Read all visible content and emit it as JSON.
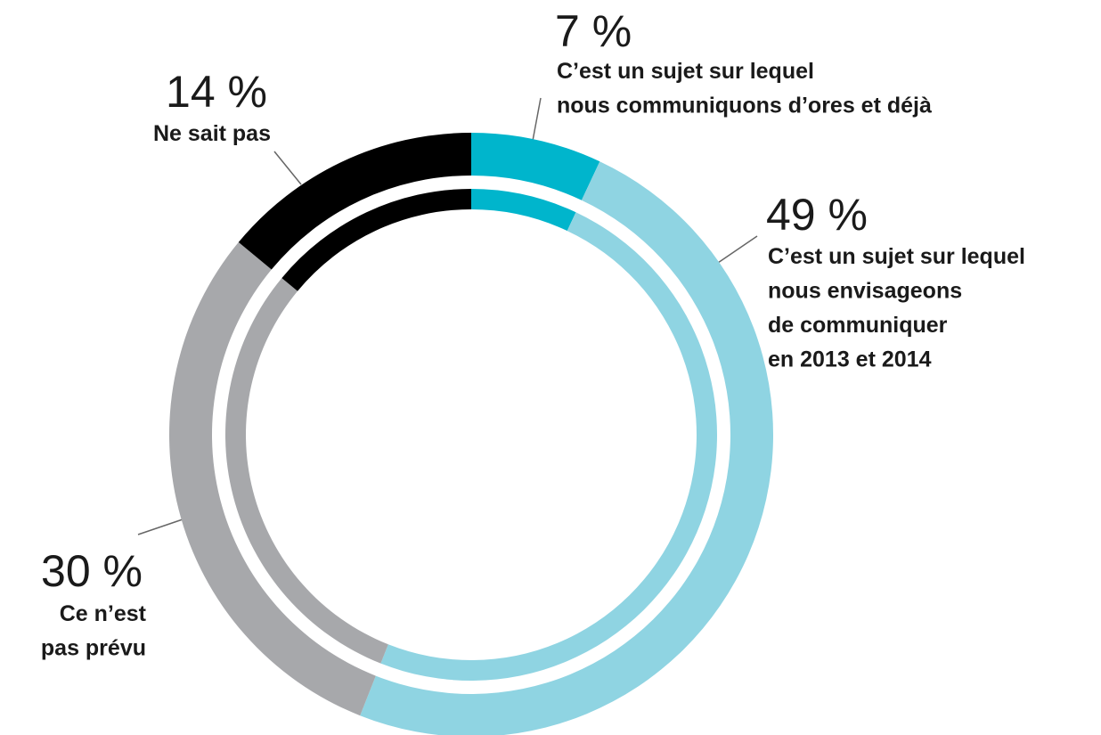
{
  "chart_data": {
    "type": "donut",
    "categories": [
      [
        "C’est un sujet sur lequel",
        "nous communiquons d’ores et déjà"
      ],
      [
        "C’est un sujet sur lequel",
        "nous envisageons",
        "de communiquer",
        "en 2013 et 2014"
      ],
      [
        "Ce n’est",
        "pas prévu"
      ],
      [
        "Ne sait pas"
      ]
    ],
    "values": [
      7,
      49,
      30,
      14
    ],
    "value_labels": [
      "7 %",
      "49 %",
      "30 %",
      "14 %"
    ],
    "colors": [
      "#00b5cc",
      "#8fd4e2",
      "#a7a8ab",
      "#000000"
    ]
  }
}
